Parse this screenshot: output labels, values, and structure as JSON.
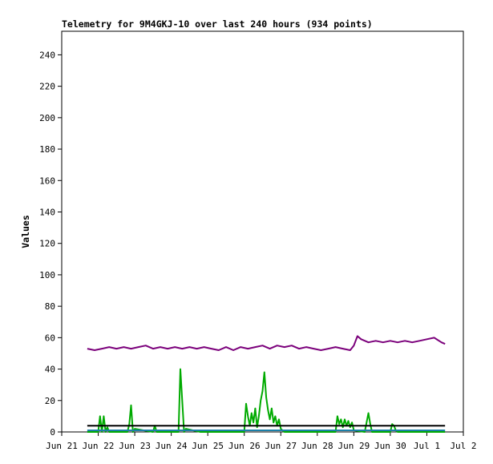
{
  "chart_data": {
    "type": "line",
    "title": "Telemetry for 9M4GKJ-10 over last 240 hours (934 points)",
    "xlabel": "",
    "ylabel": "Values",
    "ylim": [
      0,
      255
    ],
    "yticks": [
      0,
      20,
      40,
      60,
      80,
      100,
      120,
      140,
      160,
      180,
      200,
      220,
      240
    ],
    "xlim": [
      0,
      11
    ],
    "xticks": [
      {
        "value": 0,
        "label": "Jun 21"
      },
      {
        "value": 1,
        "label": "Jun 22"
      },
      {
        "value": 2,
        "label": "Jun 23"
      },
      {
        "value": 3,
        "label": "Jun 24"
      },
      {
        "value": 4,
        "label": "Jun 25"
      },
      {
        "value": 5,
        "label": "Jun 26"
      },
      {
        "value": 6,
        "label": "Jun 27"
      },
      {
        "value": 7,
        "label": "Jun 28"
      },
      {
        "value": 8,
        "label": "Jun 29"
      },
      {
        "value": 9,
        "label": "Jun 30"
      },
      {
        "value": 10,
        "label": "Jul 1"
      },
      {
        "value": 11,
        "label": "Jul 2"
      }
    ],
    "grid": false,
    "legend": "none",
    "series": [
      {
        "color": "#7b007b",
        "x": [
          0.7,
          0.9,
          1.1,
          1.3,
          1.5,
          1.7,
          1.9,
          2.1,
          2.3,
          2.5,
          2.7,
          2.9,
          3.1,
          3.3,
          3.5,
          3.7,
          3.9,
          4.1,
          4.3,
          4.5,
          4.7,
          4.9,
          5.1,
          5.3,
          5.5,
          5.7,
          5.9,
          6.1,
          6.3,
          6.5,
          6.7,
          6.9,
          7.1,
          7.3,
          7.5,
          7.7,
          7.9,
          8.0,
          8.1,
          8.2,
          8.4,
          8.6,
          8.8,
          9.0,
          9.2,
          9.4,
          9.6,
          9.8,
          10.0,
          10.2,
          10.4,
          10.5
        ],
        "values": [
          53,
          52,
          53,
          54,
          53,
          54,
          53,
          54,
          55,
          53,
          54,
          53,
          54,
          53,
          54,
          53,
          54,
          53,
          52,
          54,
          52,
          54,
          53,
          54,
          55,
          53,
          55,
          54,
          55,
          53,
          54,
          53,
          52,
          53,
          54,
          53,
          52,
          55,
          61,
          59,
          57,
          58,
          57,
          58,
          57,
          58,
          57,
          58,
          59,
          60,
          57,
          56
        ]
      },
      {
        "color": "#00aa00",
        "x": [
          0.7,
          1.0,
          1.05,
          1.1,
          1.15,
          1.2,
          1.25,
          1.3,
          1.5,
          1.8,
          1.85,
          1.9,
          1.95,
          2.0,
          2.5,
          2.55,
          2.6,
          3.2,
          3.25,
          3.3,
          3.35,
          3.4,
          3.8,
          4.6,
          5.0,
          5.05,
          5.1,
          5.15,
          5.2,
          5.25,
          5.3,
          5.35,
          5.4,
          5.45,
          5.5,
          5.55,
          5.6,
          5.65,
          5.7,
          5.75,
          5.8,
          5.85,
          5.9,
          5.95,
          6.0,
          6.05,
          6.1,
          6.15,
          6.2,
          6.25,
          6.3,
          6.35,
          6.4,
          6.5,
          7.0,
          7.5,
          7.55,
          7.6,
          7.65,
          7.7,
          7.75,
          7.8,
          7.85,
          7.9,
          7.95,
          8.0,
          8.3,
          8.35,
          8.4,
          8.45,
          8.5,
          9.0,
          9.05,
          9.1,
          9.15,
          9.2,
          9.8,
          10.2,
          10.5
        ],
        "values": [
          0,
          0,
          10,
          0,
          10,
          0,
          3,
          0,
          0,
          0,
          5,
          17,
          0,
          2,
          0,
          4,
          0,
          0,
          40,
          20,
          0,
          2,
          0,
          0,
          0,
          18,
          10,
          4,
          12,
          6,
          15,
          3,
          10,
          20,
          26,
          38,
          22,
          14,
          8,
          15,
          6,
          10,
          4,
          8,
          2,
          1,
          0,
          0,
          0,
          0,
          0,
          0,
          0,
          0,
          0,
          0,
          10,
          5,
          8,
          3,
          8,
          4,
          7,
          3,
          6,
          1,
          0,
          6,
          12,
          5,
          0,
          0,
          5,
          4,
          1,
          0,
          0,
          0,
          0
        ]
      },
      {
        "color": "#000000",
        "x": [
          0.7,
          10.5
        ],
        "values": [
          4,
          4
        ]
      },
      {
        "color": "#1a7fa8",
        "x": [
          0.7,
          10.5
        ],
        "values": [
          1,
          1
        ]
      }
    ]
  }
}
